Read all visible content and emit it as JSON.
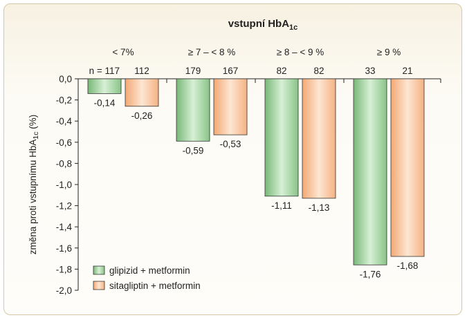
{
  "chart_data": {
    "type": "bar",
    "title": "vstupní HbA",
    "title_sub": "1c",
    "ylabel": "změna proti vstupnímu HbA",
    "ylabel_sub": "1c",
    "ylabel_suffix": " (%)",
    "ylim": [
      -2.0,
      0.0
    ],
    "yticks": [
      "0,0",
      "-0,2",
      "-0,4",
      "-0,6",
      "-0,8",
      "-1,0",
      "-1,2",
      "-1,4",
      "-1,6",
      "-1,8",
      "-2,0"
    ],
    "categories": [
      "< 7%",
      "≥ 7 – < 8 %",
      "≥ 8 – < 9 %",
      "≥ 9 %"
    ],
    "n_prefix": "n = ",
    "series": [
      {
        "name": "glipizid + metformin",
        "color": "#8fc98f",
        "values": [
          -0.14,
          -0.59,
          -1.11,
          -1.76
        ],
        "labels": [
          "-0,14",
          "-0,59",
          "-1,11",
          "-1,76"
        ],
        "n": [
          "117",
          "179",
          "82",
          "33"
        ]
      },
      {
        "name": "sitagliptin + metformin",
        "color": "#f6b98c",
        "values": [
          -0.26,
          -0.53,
          -1.13,
          -1.68
        ],
        "labels": [
          "-0,26",
          "-0,53",
          "-1,13",
          "-1,68"
        ],
        "n": [
          "112",
          "167",
          "82",
          "21"
        ]
      }
    ],
    "legend_position": "bottom-left",
    "grid": false
  }
}
